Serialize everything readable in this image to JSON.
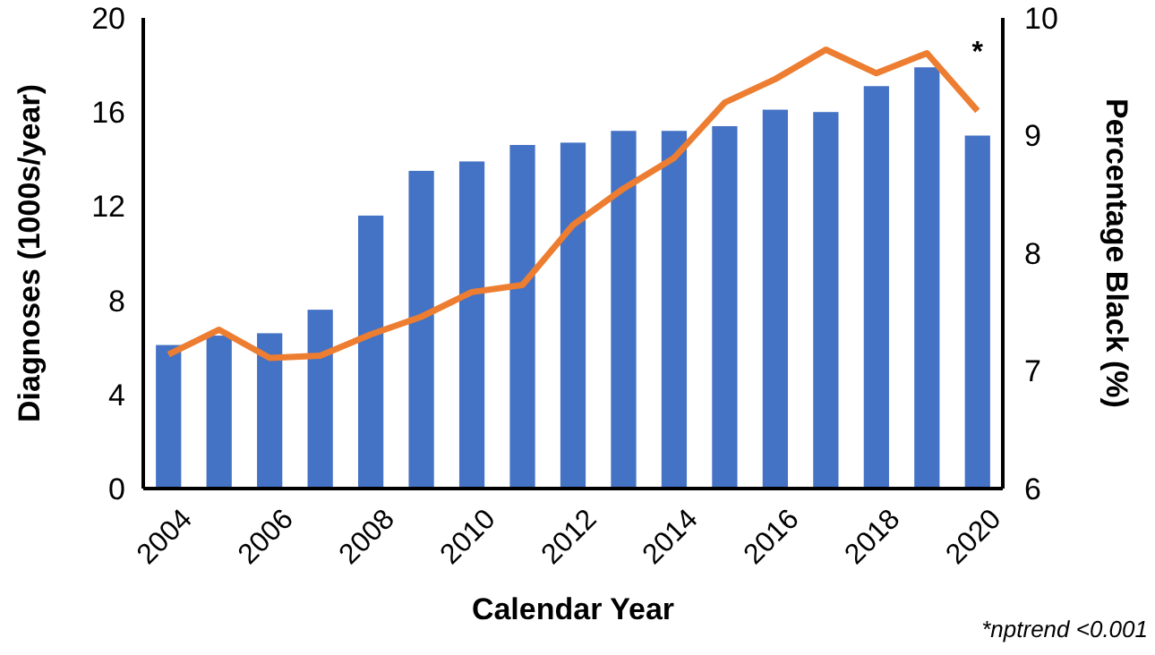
{
  "chart_data": {
    "type": "bar",
    "xlabel": "Calendar Year",
    "ylabel": "Diagnoses (1000s/year)",
    "y2label": "Percentage Black (%)",
    "categories": [
      "2004",
      null,
      "2006",
      null,
      "2008",
      null,
      "2010",
      null,
      "2012",
      null,
      "2014",
      null,
      "2016",
      null,
      "2018",
      null,
      "2020"
    ],
    "series": [
      {
        "color": "#4472c4",
        "values": [
          6.1,
          6.5,
          6.6,
          7.6,
          11.6,
          13.5,
          13.9,
          14.6,
          14.7,
          15.2,
          15.2,
          15.4,
          16.1,
          16.0,
          17.1,
          17.9,
          15.0
        ]
      },
      {
        "type": "line",
        "axis": "y2",
        "color": "#ed7d31",
        "values": [
          7.14,
          7.35,
          7.11,
          7.13,
          7.31,
          7.46,
          7.67,
          7.73,
          8.24,
          8.55,
          8.81,
          9.28,
          9.48,
          9.73,
          9.53,
          9.7,
          9.21
        ]
      }
    ],
    "ylim": [
      0,
      20
    ],
    "yticks": [
      0,
      4,
      8,
      12,
      16,
      20
    ],
    "y2lim": [
      6,
      10
    ],
    "y2ticks": [
      6,
      7,
      8,
      9,
      10
    ],
    "grid": false,
    "marker": "none",
    "line_style": "solid",
    "annotations": [
      "*",
      "*nptrend <0.001"
    ]
  }
}
